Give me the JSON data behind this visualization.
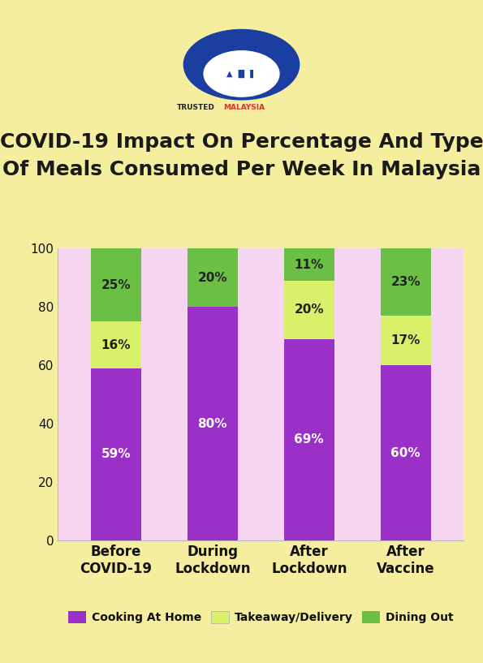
{
  "title": "COVID-19 Impact On Percentage And Type\nOf Meals Consumed Per Week In Malaysia",
  "categories": [
    "Before\nCOVID-19",
    "During\nLockdown",
    "After\nLockdown",
    "After\nVaccine"
  ],
  "cooking_at_home": [
    59,
    80,
    69,
    60
  ],
  "takeaway_delivery": [
    16,
    0,
    20,
    17
  ],
  "dining_out": [
    25,
    20,
    11,
    23
  ],
  "cooking_color": "#9B30C8",
  "takeaway_color": "#D8F06A",
  "dining_color": "#6BBF44",
  "bg_outer": "#F5EE9E",
  "bg_chart": "#F5D5F0",
  "title_color": "#1a1a1a",
  "bar_width": 0.52,
  "ylim": [
    0,
    100
  ],
  "yticks": [
    0,
    20,
    40,
    60,
    80,
    100
  ],
  "legend_labels": [
    "Cooking At Home",
    "Takeaway/Delivery",
    "Dining Out"
  ],
  "tick_fontsize": 11,
  "title_fontsize": 18,
  "value_fontsize": 11,
  "cat_fontsize": 12,
  "logo_color": "#1a3fa0",
  "trusted_color": "#222222",
  "malaysia_color": "#e03030"
}
